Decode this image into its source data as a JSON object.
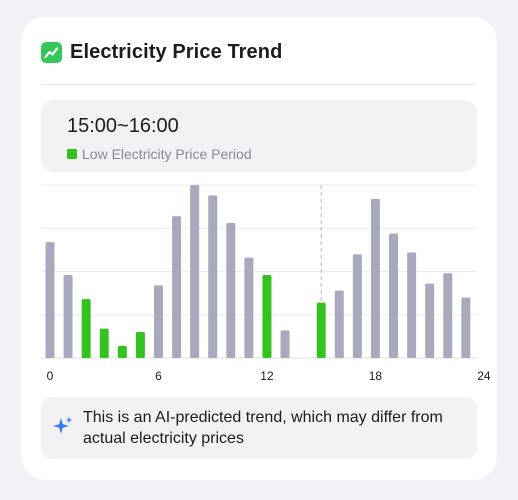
{
  "card": {
    "title": "Electricity Price Trend",
    "title_icon": "chart-trend-up-icon"
  },
  "info_box": {
    "time_range": "15:00~16:00",
    "legend_label": "Low Electricity Price Period"
  },
  "colors": {
    "low_price": "#35c11f",
    "normal_price": "#a9a9bd",
    "icon_green": "#35c759",
    "ai_icon": "#3478f6"
  },
  "chart_data": {
    "type": "bar",
    "x": [
      0,
      1,
      2,
      3,
      4,
      5,
      6,
      7,
      8,
      9,
      10,
      11,
      12,
      13,
      14,
      15,
      16,
      17,
      18,
      19,
      20,
      21,
      22,
      23,
      24
    ],
    "values": [
      67,
      48,
      34,
      17,
      7,
      15,
      42,
      82,
      100,
      94,
      78,
      58,
      48,
      16,
      0,
      32,
      39,
      60,
      92,
      72,
      61,
      43,
      49,
      35,
      0
    ],
    "low_price_hours": [
      2,
      3,
      4,
      5,
      12,
      15
    ],
    "selected_hour": 15,
    "x_tick_labels": [
      "0",
      "6",
      "12",
      "18",
      "24"
    ],
    "ylim": [
      0,
      100
    ],
    "grid": true,
    "title": "",
    "xlabel": "",
    "ylabel": ""
  },
  "footer": {
    "icon": "ai-sparkle-icon",
    "note": "This is an AI-predicted trend, which may differ from actual electricity prices"
  }
}
